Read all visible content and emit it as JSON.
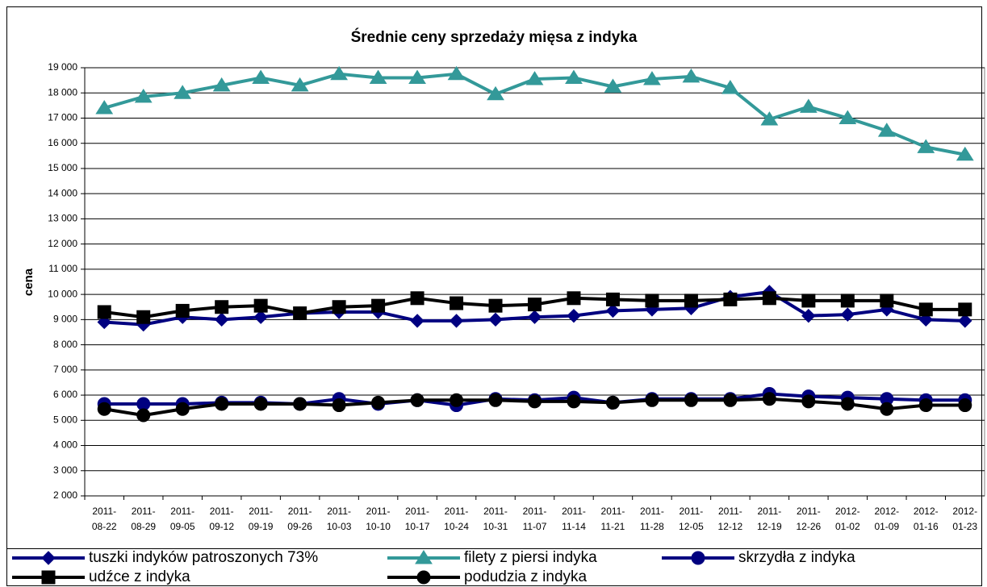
{
  "chart_data": {
    "type": "line",
    "title": "Średnie ceny sprzedaży mięsa z indyka",
    "y_label": "cena",
    "categories": [
      "2011-08-22",
      "2011-08-29",
      "2011-09-05",
      "2011-09-12",
      "2011-09-19",
      "2011-09-26",
      "2011-10-03",
      "2011-10-10",
      "2011-10-17",
      "2011-10-24",
      "2011-10-31",
      "2011-11-07",
      "2011-11-14",
      "2011-11-21",
      "2011-11-28",
      "2011-12-05",
      "2011-12-12",
      "2011-12-19",
      "2011-12-26",
      "2012-01-02",
      "2012-01-09",
      "2012-01-16",
      "2012-01-23"
    ],
    "series": [
      {
        "name": "tuszki indyków  patroszonych 73%",
        "color": "#000080",
        "marker": "diamond",
        "values": [
          8900,
          8800,
          9100,
          9000,
          9100,
          9250,
          9300,
          9300,
          8950,
          8950,
          9000,
          9100,
          9150,
          9350,
          9400,
          9450,
          9900,
          10100,
          9150,
          9200,
          9400,
          9000,
          8950
        ]
      },
      {
        "name": "filety z piersi indyka",
        "color": "#339999",
        "marker": "triangle",
        "values": [
          17400,
          17850,
          18000,
          18300,
          18600,
          18300,
          18750,
          18600,
          18600,
          18750,
          17950,
          18550,
          18600,
          18250,
          18550,
          18650,
          18200,
          16950,
          17450,
          17000,
          16500,
          15850,
          15550
        ]
      },
      {
        "name": "skrzydła z indyka",
        "color": "#000080",
        "marker": "circle",
        "values": [
          5650,
          5650,
          5650,
          5700,
          5700,
          5650,
          5850,
          5650,
          5800,
          5600,
          5850,
          5800,
          5900,
          5700,
          5850,
          5850,
          5850,
          6050,
          5950,
          5900,
          5850,
          5800,
          5800
        ]
      },
      {
        "name": "udźce z indyka",
        "color": "#000000",
        "marker": "square",
        "values": [
          9300,
          9100,
          9350,
          9500,
          9550,
          9250,
          9500,
          9550,
          9850,
          9650,
          9550,
          9600,
          9850,
          9800,
          9750,
          9750,
          9800,
          9850,
          9750,
          9750,
          9750,
          9400,
          9400
        ]
      },
      {
        "name": "podudzia z indyka",
        "color": "#000000",
        "marker": "circle",
        "values": [
          5450,
          5200,
          5450,
          5650,
          5650,
          5650,
          5600,
          5700,
          5800,
          5800,
          5800,
          5750,
          5750,
          5700,
          5800,
          5800,
          5800,
          5850,
          5750,
          5650,
          5450,
          5600,
          5600
        ]
      }
    ],
    "ylim": [
      2000,
      19000
    ],
    "yticks": [
      {
        "value": 2000,
        "label": "2 000"
      },
      {
        "value": 3000,
        "label": "3 000"
      },
      {
        "value": 4000,
        "label": "4 000"
      },
      {
        "value": 5000,
        "label": "5 000"
      },
      {
        "value": 6000,
        "label": "6 000"
      },
      {
        "value": 7000,
        "label": "7 000"
      },
      {
        "value": 8000,
        "label": "8 000"
      },
      {
        "value": 9000,
        "label": "9 000"
      },
      {
        "value": 10000,
        "label": "10 000"
      },
      {
        "value": 11000,
        "label": "11 000"
      },
      {
        "value": 12000,
        "label": "12 000"
      },
      {
        "value": 13000,
        "label": "13 000"
      },
      {
        "value": 14000,
        "label": "14 000"
      },
      {
        "value": 15000,
        "label": "15 000"
      },
      {
        "value": 16000,
        "label": "16 000"
      },
      {
        "value": 17000,
        "label": "17 000"
      },
      {
        "value": 18000,
        "label": "18 000"
      },
      {
        "value": 19000,
        "label": "19 000"
      }
    ],
    "grid": true,
    "legend": "bottom"
  }
}
